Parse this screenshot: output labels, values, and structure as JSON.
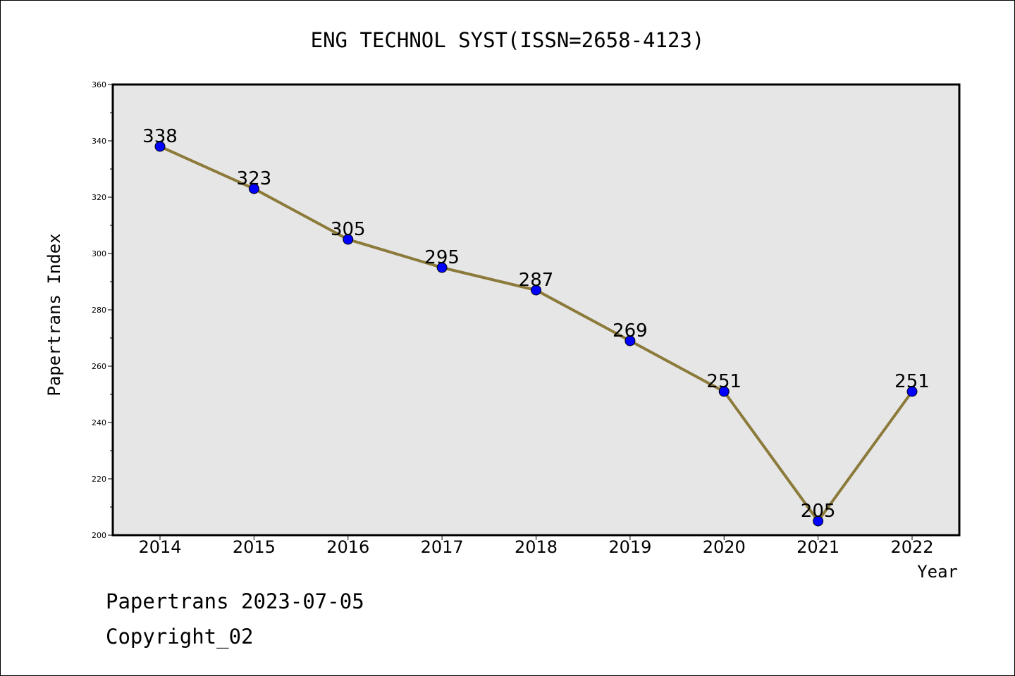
{
  "chart_data": {
    "type": "line",
    "title": "ENG TECHNOL SYST(ISSN=2658-4123)",
    "xlabel": "Year",
    "ylabel": "Papertrans Index",
    "categories": [
      "2014",
      "2015",
      "2016",
      "2017",
      "2018",
      "2019",
      "2020",
      "2021",
      "2022"
    ],
    "series": [
      {
        "values": [
          338,
          323,
          305,
          295,
          287,
          269,
          251,
          205,
          251
        ],
        "line_color": "#8B7A3A",
        "marker_color": "#0000FF"
      }
    ],
    "data_labels": [
      "338",
      "323",
      "305",
      "295",
      "287",
      "269",
      "251",
      "205",
      "251"
    ],
    "ylim": [
      200,
      360
    ],
    "y_ticks": [
      "200",
      "220",
      "240",
      "260",
      "280",
      "300",
      "320",
      "340",
      "360"
    ],
    "grid": false,
    "plot_background": "#E6E6E6"
  },
  "footer": {
    "line1": "Papertrans 2023-07-05",
    "line2": "Copyright_02"
  }
}
